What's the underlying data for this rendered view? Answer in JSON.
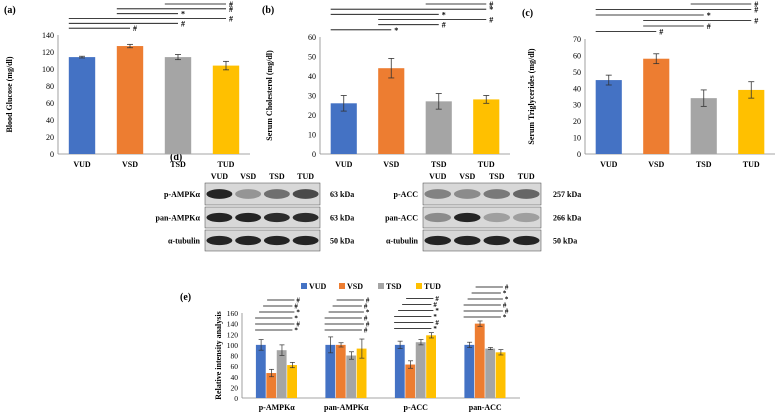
{
  "colors": {
    "VUD": "#4472C4",
    "VSD": "#ED7D31",
    "TSD": "#A5A5A5",
    "TUD": "#FFC000",
    "blot_bg": "#d8d8d8",
    "blot_band": "#1a1a1a"
  },
  "panel_labels": [
    "(a)",
    "(b)",
    "(c)",
    "(d)",
    "(e)"
  ],
  "chart_data": [
    {
      "type": "bar",
      "panel": "(a)",
      "categories": [
        "VUD",
        "VSD",
        "TSD",
        "TUD"
      ],
      "values": [
        114,
        127,
        114,
        104
      ],
      "errors": [
        1,
        2,
        3,
        5
      ],
      "ylabel": "Blood Glucose (mg/dl)",
      "ylim": [
        0,
        140
      ],
      "yticks": [
        0,
        20,
        40,
        60,
        80,
        100,
        120,
        140
      ],
      "significance": [
        {
          "from": 0,
          "to": 1,
          "mark": "#"
        },
        {
          "from": 0,
          "to": 2,
          "mark": "#"
        },
        {
          "from": 0,
          "to": 3,
          "mark": "#"
        },
        {
          "from": 1,
          "to": 2,
          "mark": "*"
        },
        {
          "from": 1,
          "to": 3,
          "mark": "#"
        },
        {
          "from": 2,
          "to": 3,
          "mark": "#"
        }
      ]
    },
    {
      "type": "bar",
      "panel": "(b)",
      "categories": [
        "VUD",
        "VSD",
        "TSD",
        "TUD"
      ],
      "values": [
        26,
        44,
        27,
        28
      ],
      "errors": [
        4,
        5,
        4,
        2
      ],
      "ylabel": "Serum Cholesterol (mg/dl)",
      "ylim": [
        0,
        60
      ],
      "yticks": [
        0,
        10,
        20,
        30,
        40,
        50,
        60
      ],
      "significance": [
        {
          "from": 0,
          "to": 1,
          "mark": "*"
        },
        {
          "from": 1,
          "to": 2,
          "mark": "#"
        },
        {
          "from": 1,
          "to": 3,
          "mark": "#"
        },
        {
          "from": 0,
          "to": 2,
          "mark": "*"
        },
        {
          "from": 0,
          "to": 3,
          "mark": "*"
        },
        {
          "from": 2,
          "to": 3,
          "mark": "#"
        }
      ]
    },
    {
      "type": "bar",
      "panel": "(c)",
      "categories": [
        "VUD",
        "VSD",
        "TSD",
        "TUD"
      ],
      "values": [
        45,
        58,
        34,
        39
      ],
      "errors": [
        3,
        3,
        5,
        5
      ],
      "ylabel": "Serum Triglycerides (mg/dl)",
      "ylim": [
        0,
        70
      ],
      "yticks": [
        0,
        10,
        20,
        30,
        40,
        50,
        60,
        70
      ],
      "significance": [
        {
          "from": 0,
          "to": 1,
          "mark": "#"
        },
        {
          "from": 1,
          "to": 2,
          "mark": "#"
        },
        {
          "from": 1,
          "to": 3,
          "mark": "#"
        },
        {
          "from": 0,
          "to": 2,
          "mark": "*"
        },
        {
          "from": 0,
          "to": 3,
          "mark": "#"
        },
        {
          "from": 2,
          "to": 3,
          "mark": "#"
        }
      ]
    },
    {
      "type": "bar",
      "panel": "(e)",
      "categories": [
        "p-AMPKα",
        "pan-AMPKα",
        "p-ACC",
        "pan-ACC"
      ],
      "series": [
        {
          "name": "VUD",
          "values": [
            100,
            100,
            100,
            100
          ],
          "errors": [
            10,
            15,
            7,
            5
          ]
        },
        {
          "name": "VSD",
          "values": [
            47,
            100,
            63,
            140
          ],
          "errors": [
            7,
            4,
            7,
            5
          ]
        },
        {
          "name": "TSD",
          "values": [
            90,
            80,
            105,
            93
          ],
          "errors": [
            10,
            7,
            5,
            2
          ]
        },
        {
          "name": "TUD",
          "values": [
            62,
            93,
            118,
            86
          ],
          "errors": [
            5,
            18,
            5,
            5
          ]
        }
      ],
      "ylabel": "Relative intensity analysis",
      "ylim": [
        0,
        160
      ],
      "yticks": [
        0,
        20,
        40,
        60,
        80,
        100,
        120,
        140,
        160
      ],
      "significance_marks": [
        [
          "*",
          "#",
          "*",
          "*",
          "#",
          "#"
        ],
        [
          "#",
          "#",
          "#",
          "*",
          "#",
          "#"
        ],
        [
          "*",
          "#",
          "*",
          "*",
          "#",
          "#"
        ],
        [
          "*",
          "#",
          "#",
          "*",
          "*",
          "#"
        ]
      ]
    }
  ],
  "blots": {
    "left": {
      "lanes": [
        "VUD",
        "VSD",
        "TSD",
        "TUD"
      ],
      "rows": [
        {
          "label": "p-AMPKα",
          "size": "63 kDa",
          "intensity": [
            0.95,
            0.35,
            0.55,
            0.75
          ]
        },
        {
          "label": "pan-AMPKα",
          "size": "63 kDa",
          "intensity": [
            0.95,
            0.95,
            0.9,
            0.9
          ]
        },
        {
          "label": "α-tubulin",
          "size": "50 kDa",
          "intensity": [
            0.95,
            0.95,
            0.95,
            0.95
          ]
        }
      ]
    },
    "right": {
      "lanes": [
        "VUD",
        "VSD",
        "TSD",
        "TUD"
      ],
      "rows": [
        {
          "label": "p-ACC",
          "size": "257 kDa",
          "intensity": [
            0.45,
            0.4,
            0.5,
            0.6
          ]
        },
        {
          "label": "pan-ACC",
          "size": "266 kDa",
          "intensity": [
            0.4,
            0.95,
            0.3,
            0.3
          ]
        },
        {
          "label": "α-tubulin",
          "size": "50 kDa",
          "intensity": [
            0.95,
            0.95,
            0.95,
            0.95
          ]
        }
      ]
    }
  }
}
